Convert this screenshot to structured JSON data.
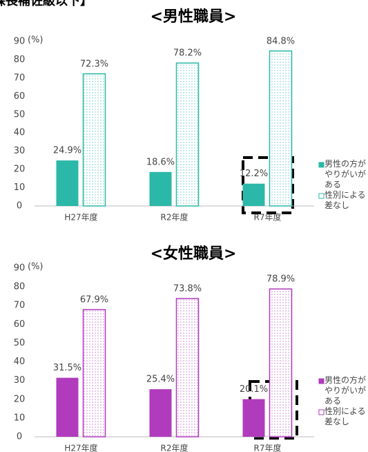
{
  "heading": "課長補佐級以下】",
  "chart_data": [
    {
      "type": "bar",
      "title": "<男性職員>",
      "unit": "(%)",
      "categories": [
        "H27年度",
        "R2年度",
        "R7年度"
      ],
      "series": [
        {
          "name": "男性の方がやりがいがある",
          "color": "#2bb8a8",
          "style": "solid",
          "values": [
            24.9,
            18.6,
            12.2
          ],
          "value_labels": [
            "24.9%",
            "18.6%",
            "12.2%"
          ]
        },
        {
          "name": "性別による差なし",
          "color": "#2bb8a8",
          "style": "dotted",
          "values": [
            72.3,
            78.2,
            84.8
          ],
          "value_labels": [
            "72.3%",
            "78.2%",
            "84.8%"
          ]
        }
      ],
      "ylim": [
        0,
        90
      ],
      "yticks": [
        0,
        10,
        20,
        30,
        40,
        50,
        60,
        70,
        80,
        90
      ],
      "legend": "right"
    },
    {
      "type": "bar",
      "title": "<女性職員>",
      "unit": "(%)",
      "categories": [
        "H27年度",
        "R2年度",
        "R7年度"
      ],
      "series": [
        {
          "name": "男性の方がやりがいがある",
          "color": "#b13bbd",
          "style": "solid",
          "values": [
            31.5,
            25.4,
            20.1
          ],
          "value_labels": [
            "31.5%",
            "25.4%",
            "20.1%"
          ]
        },
        {
          "name": "性別による差なし",
          "color": "#b13bbd",
          "style": "dotted",
          "values": [
            67.9,
            73.8,
            78.9
          ],
          "value_labels": [
            "67.9%",
            "73.8%",
            "78.9%"
          ]
        }
      ],
      "ylim": [
        0,
        90
      ],
      "yticks": [
        0,
        10,
        20,
        30,
        40,
        50,
        60,
        70,
        80,
        90
      ],
      "legend": "right"
    }
  ]
}
